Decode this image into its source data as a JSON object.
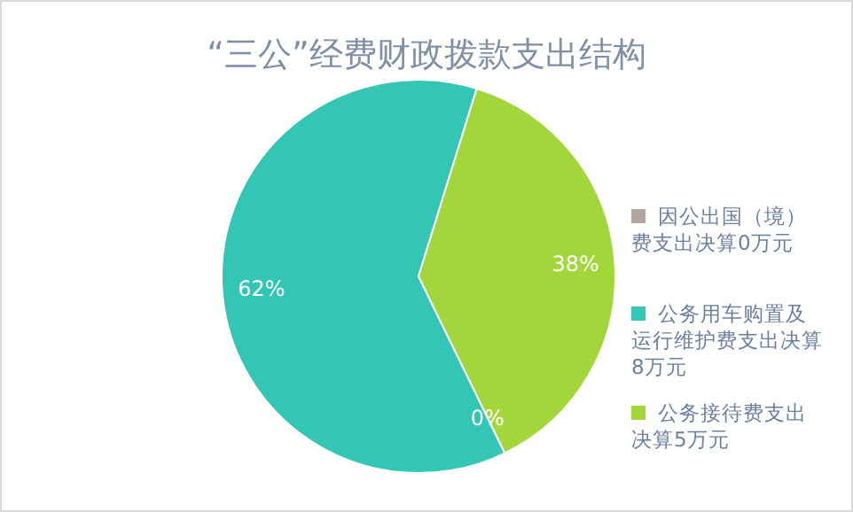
{
  "chart_data": {
    "type": "pie",
    "title": "“三公”经费财政拨款支出结构",
    "categories": [
      "因公出国（境）费支出决算0万元",
      "公务用车购置及运行维护费支出决算8万元",
      "公务接待费支出决算5万元"
    ],
    "values": [
      0,
      62,
      38
    ],
    "colors": [
      "#b0a8a0",
      "#34c6b4",
      "#a2d63a"
    ],
    "value_labels": [
      "0%",
      "62%",
      "38%"
    ],
    "legend": "right"
  }
}
